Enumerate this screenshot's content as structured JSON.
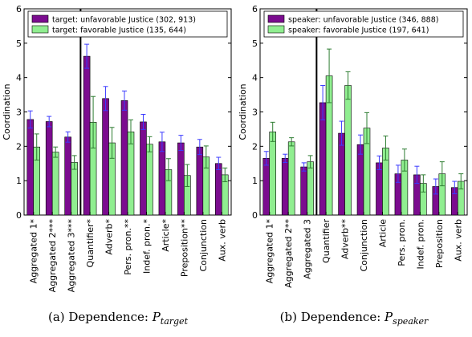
{
  "colors": {
    "unfavorable": "#7b0c8f",
    "favorable": "#90ee90",
    "error_unfavorable": "#3b3bff",
    "error_favorable": "#2e7d32"
  },
  "chart_data": [
    {
      "type": "bar",
      "panel": "a",
      "caption_prefix": "(a) Dependence: ",
      "caption_symbol": "P",
      "caption_subscript": "target",
      "ylabel": "Coordination",
      "ylim": [
        0,
        6
      ],
      "yticks": [
        0,
        1,
        2,
        3,
        4,
        5,
        6
      ],
      "grid": false,
      "legend": "top",
      "divider_after_index": 2,
      "categories": [
        "Aggregated 1*",
        "Aggregated 2***",
        "Aggregated 3***",
        "Quantifier*",
        "Adverb*",
        "Pers. pron.**",
        "Indef. pron.*",
        "Article*",
        "Preposition**",
        "Conjunction",
        "Aux. verb"
      ],
      "series": [
        {
          "name": "target: unfavorable Justice (302, 913)",
          "values": [
            2.78,
            2.72,
            2.27,
            4.62,
            3.39,
            3.33,
            2.71,
            2.13,
            2.1,
            1.98,
            1.5
          ],
          "err": [
            0.25,
            0.15,
            0.15,
            0.35,
            0.35,
            0.28,
            0.22,
            0.28,
            0.22,
            0.22,
            0.18
          ]
        },
        {
          "name": "target: favorable Justice (135, 644)",
          "values": [
            1.98,
            1.83,
            1.53,
            2.7,
            2.1,
            2.42,
            2.06,
            1.32,
            1.15,
            1.69,
            1.17
          ],
          "err": [
            0.38,
            0.15,
            0.2,
            0.75,
            0.45,
            0.35,
            0.22,
            0.32,
            0.32,
            0.32,
            0.2
          ]
        }
      ]
    },
    {
      "type": "bar",
      "panel": "b",
      "caption_prefix": "(b) Dependence: ",
      "caption_symbol": "P",
      "caption_subscript": "speaker",
      "ylabel": "Coordination",
      "ylim": [
        0,
        6
      ],
      "yticks": [
        0,
        1,
        2,
        3,
        4,
        5,
        6
      ],
      "grid": false,
      "legend": "top",
      "divider_after_index": 2,
      "categories": [
        "Aggregated 1*",
        "Aggregated 2**",
        "Aggregated 3",
        "Quantifier",
        "Adverb**",
        "Conjunction",
        "Article",
        "Pers. pron.",
        "Indef. pron.",
        "Preposition",
        "Aux. verb"
      ],
      "series": [
        {
          "name": "speaker: unfavorable Justice (346, 888)",
          "values": [
            1.65,
            1.65,
            1.4,
            3.27,
            2.38,
            2.05,
            1.52,
            1.2,
            1.17,
            0.83,
            0.8
          ],
          "err": [
            0.2,
            0.12,
            0.12,
            0.5,
            0.35,
            0.28,
            0.2,
            0.25,
            0.25,
            0.22,
            0.18
          ]
        },
        {
          "name": "speaker: favorable Justice (197, 641)",
          "values": [
            2.42,
            2.13,
            1.55,
            4.05,
            3.77,
            2.53,
            1.95,
            1.6,
            0.92,
            1.2,
            0.98
          ],
          "err": [
            0.28,
            0.12,
            0.18,
            0.78,
            0.4,
            0.45,
            0.35,
            0.32,
            0.25,
            0.35,
            0.22
          ]
        }
      ]
    }
  ]
}
